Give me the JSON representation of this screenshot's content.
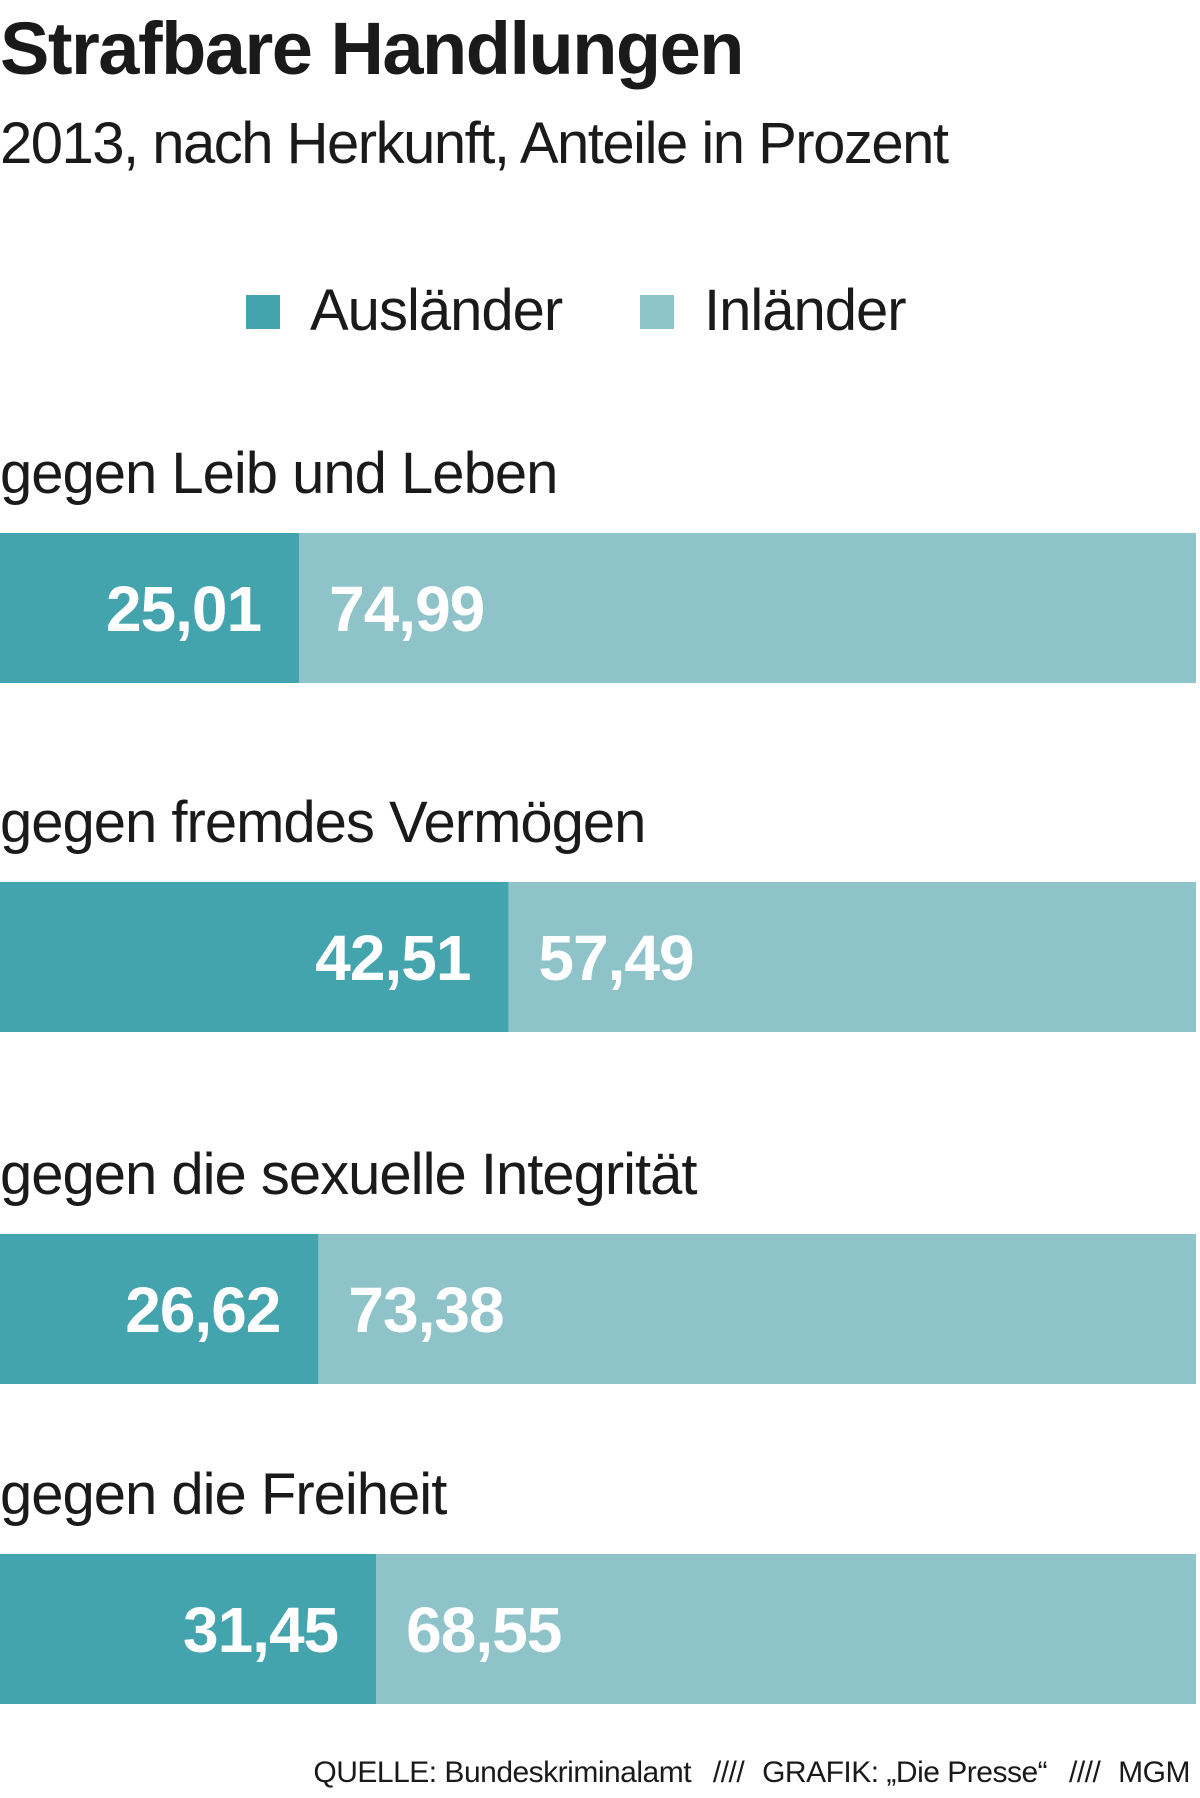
{
  "title": "Strafbare Handlungen",
  "subtitle": "2013, nach Herkunft, Anteile in Prozent",
  "colors": {
    "auslaender": "#44a4ae",
    "inlaender": "#8ec3c9"
  },
  "chart_data": {
    "type": "bar",
    "orientation": "horizontal",
    "stacked": true,
    "title": "Strafbare Handlungen",
    "subtitle": "2013, nach Herkunft, Anteile in Prozent",
    "categories": [
      "gegen Leib und Leben",
      "gegen fremdes Vermögen",
      "gegen die sexuelle Integrität",
      "gegen die Freiheit"
    ],
    "series": [
      {
        "name": "Ausländer",
        "values": [
          25.01,
          42.51,
          26.62,
          31.45
        ],
        "labels": [
          "25,01",
          "42,51",
          "26,62",
          "31,45"
        ]
      },
      {
        "name": "Inländer",
        "values": [
          74.99,
          57.49,
          73.38,
          68.55
        ],
        "labels": [
          "74,99",
          "57,49",
          "73,38",
          "68,55"
        ]
      }
    ],
    "xlim": [
      0,
      100
    ],
    "grid": false,
    "legend_position": "top-center"
  },
  "source": {
    "quelle": "QUELLE: Bundeskriminalamt",
    "grafik": "GRAFIK: „Die Presse“",
    "sep": "////",
    "author": "MGM"
  }
}
